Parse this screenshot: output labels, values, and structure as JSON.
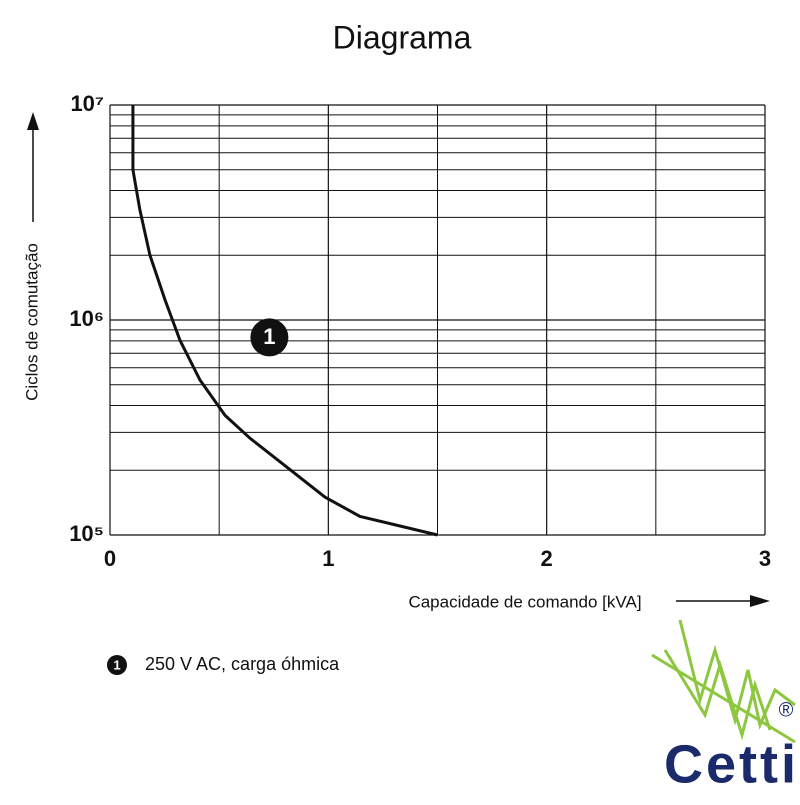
{
  "chart_data": {
    "type": "line",
    "title": "Diagrama",
    "x_label": "Capacidade de comando [kVA]",
    "y_label": "Ciclos de comutação",
    "xlim": [
      0,
      3
    ],
    "xticks": [
      0,
      1,
      2,
      3
    ],
    "xminor": [
      0.5,
      1.5,
      2.5
    ],
    "ylim": [
      100000,
      10000000
    ],
    "log_y": true,
    "grid": true,
    "yticks": [
      {
        "value": 100000,
        "label": "10⁵"
      },
      {
        "value": 1000000,
        "label": "10⁶"
      },
      {
        "value": 10000000,
        "label": "10⁷"
      }
    ],
    "yminor": [
      200000,
      300000,
      400000,
      500000,
      600000,
      700000,
      800000,
      900000,
      2000000,
      3000000,
      4000000,
      5000000,
      6000000,
      7000000,
      8000000,
      9000000
    ],
    "series": [
      {
        "name": "250 V AC, carga óhmica",
        "marker_label": "1",
        "color": "#111111",
        "x": [
          0.105,
          0.105,
          0.137,
          0.183,
          0.252,
          0.32,
          0.412,
          0.527,
          0.641,
          0.779,
          0.985,
          1.145,
          1.5
        ],
        "values": [
          10000000,
          5000000,
          3250000,
          2000000,
          1240000,
          807000,
          526000,
          360000,
          282000,
          219000,
          150000,
          122000,
          100000
        ]
      }
    ],
    "annotation": {
      "text": "1",
      "x": 0.73,
      "y": 830000
    },
    "logo": {
      "text": "Cetti",
      "mark": "®"
    }
  }
}
